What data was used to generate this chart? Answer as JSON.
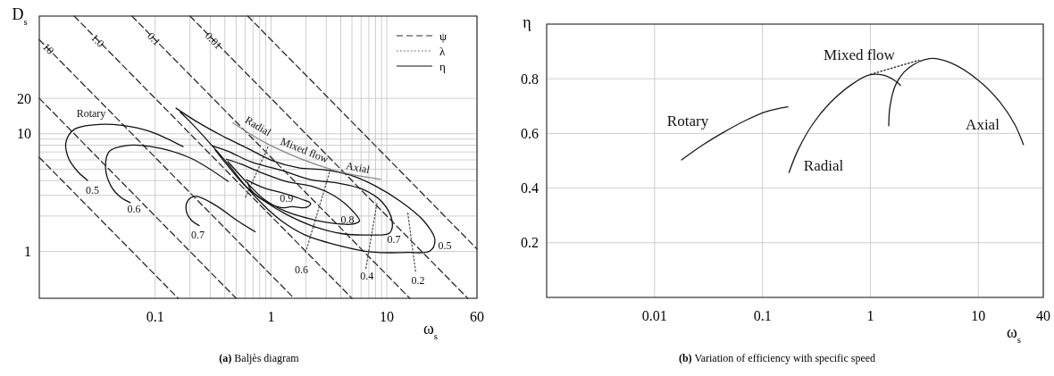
{
  "chart_data": [
    {
      "type": "line",
      "title": "(a) Baljès diagram",
      "xlabel": "ω$_{s}$",
      "ylabel": "D$_{s}$",
      "log": "xy",
      "xlim": [
        0.01,
        60
      ],
      "ylim": [
        0.4,
        100
      ],
      "xticks": [
        0.1,
        {
          "value": 0.2,
          "label": null
        },
        {
          "value": 0.3,
          "label": null
        },
        {
          "value": 0.4,
          "label": null
        },
        {
          "value": 0.5,
          "label": null
        },
        {
          "value": 0.6,
          "label": null
        },
        {
          "value": 0.7,
          "label": null
        },
        {
          "value": 0.8,
          "label": null
        },
        {
          "value": 0.9,
          "label": null
        },
        1,
        {
          "value": 2,
          "label": null
        },
        {
          "value": 3,
          "label": null
        },
        {
          "value": 4,
          "label": null
        },
        {
          "value": 5,
          "label": null
        },
        {
          "value": 6,
          "label": null
        },
        {
          "value": 7,
          "label": null
        },
        {
          "value": 8,
          "label": null
        },
        {
          "value": 9,
          "label": null
        },
        10,
        60
      ],
      "yticks": [
        1,
        {
          "value": 2,
          "label": null
        },
        {
          "value": 3,
          "label": null
        },
        {
          "value": 4,
          "label": null
        },
        {
          "value": 5,
          "label": null
        },
        {
          "value": 6,
          "label": null
        },
        {
          "value": 7,
          "label": null
        },
        {
          "value": 8,
          "label": null
        },
        {
          "value": 9,
          "label": null
        },
        10,
        20
      ],
      "grid": true,
      "legend": "top right",
      "series": [
        {
          "name": "ψ",
          "color": "#2b2b2b",
          "line_style": "dashed",
          "x": [
            0.01,
            0.158
          ],
          "values": [
            6.3,
            0.4
          ]
        },
        {
          "color": "#2b2b2b",
          "line_style": "dashed",
          "x": [
            0.01,
            0.5
          ],
          "values": [
            20,
            0.4
          ]
        },
        {
          "color": "#2b2b2b",
          "line_style": "dashed",
          "x": [
            0.01,
            1.58
          ],
          "values": [
            63,
            0.4
          ]
        },
        {
          "color": "#2b2b2b",
          "line_style": "dashed",
          "x": [
            0.02,
            5
          ],
          "values": [
            100,
            0.4
          ]
        },
        {
          "color": "#2b2b2b",
          "line_style": "dashed",
          "x": [
            0.063,
            15.8
          ],
          "values": [
            100,
            0.4
          ]
        },
        {
          "color": "#2b2b2b",
          "line_style": "dashed",
          "x": [
            0.2,
            50
          ],
          "values": [
            100,
            0.4
          ]
        },
        {
          "color": "#2b2b2b",
          "line_style": "dashed",
          "x": [
            0.63,
            60
          ],
          "values": [
            100,
            1.05
          ]
        },
        {
          "name": "λ",
          "color": "#555555",
          "line_style": "dotted",
          "x": [
            1.99,
            3.27
          ],
          "values": [
            0.98,
            5.05
          ]
        },
        {
          "color": "#555555",
          "line_style": "dotted",
          "x": [
            0.604,
            0.944
          ],
          "values": [
            2.89,
            7.78
          ]
        },
        {
          "color": "#555555",
          "line_style": "dotted",
          "x": [
            6.6,
            8.25
          ],
          "values": [
            0.72,
            2.64
          ]
        },
        {
          "color": "#555555",
          "line_style": "dotted",
          "x": [
            17.7,
            15.1
          ],
          "values": [
            0.68,
            2.19
          ]
        },
        {
          "name": "η",
          "color": "#111111",
          "line_style": "solid",
          "x": [
            0.174,
            0.0922,
            0.0519,
            0.0292,
            0.02,
            0.017,
            0.0178,
            0.021,
            0.0261
          ],
          "values": [
            7.78,
            10.4,
            11.8,
            11.9,
            10.9,
            8.53,
            6.27,
            4.89,
            4.01
          ]
        },
        {
          "color": "#111111",
          "line_style": "solid",
          "x": [
            0.426,
            0.198,
            0.0922,
            0.0554,
            0.0403,
            0.0373,
            0.0416,
            0.0503,
            0.0609
          ],
          "values": [
            3.94,
            6.27,
            7.78,
            7.93,
            7.1,
            5.2,
            3.59,
            2.89,
            2.6
          ]
        },
        {
          "color": "#111111",
          "line_style": "solid",
          "x": [
            0.731,
            0.515,
            0.33,
            0.225,
            0.192,
            0.186,
            0.208,
            0.24
          ],
          "values": [
            1.47,
            1.82,
            2.48,
            2.94,
            2.72,
            2.19,
            1.82,
            1.66
          ]
        },
        {
          "color": "#111111",
          "line_style": "solid",
          "x": [
            0.1515,
            0.225,
            0.375,
            0.624,
            1.04,
            1.73,
            2.88,
            4.8,
            8.0,
            13.3,
            20.8,
            26.0,
            23.6,
            15.1,
            7.36,
            4.04,
            1.97,
            1.23,
            0.859,
            0.604,
            0.426,
            0.29,
            0.198,
            0.165
          ],
          "values": [
            16.5,
            12.8,
            9.66,
            7.55,
            5.89,
            5.14,
            4.95,
            4.46,
            3.59,
            2.64,
            1.82,
            1.26,
            1.01,
            0.98,
            0.99,
            1.11,
            1.38,
            1.82,
            2.48,
            3.59,
            5.53,
            8.53,
            12.8,
            15.2
          ]
        },
        {
          "color": "#111111",
          "line_style": "solid",
          "x": [
            0.313,
            0.426,
            0.678,
            1.23,
            2.23,
            3.72,
            6.19,
            9.07,
            11.1,
            10.6,
            7.03,
            4.04,
            2.23,
            1.34,
            0.859,
            0.585,
            0.412,
            0.33
          ],
          "values": [
            7.88,
            7.1,
            5.75,
            4.89,
            4.06,
            3.82,
            3.38,
            2.64,
            1.82,
            1.44,
            1.38,
            1.42,
            1.66,
            2.08,
            2.72,
            3.7,
            5.53,
            7.3
          ]
        },
        {
          "color": "#111111",
          "line_style": "solid",
          "x": [
            0.412,
            0.549,
            0.859,
            1.34,
            2.23,
            3.49,
            5.11,
            5.81,
            5.11,
            3.49,
            2.23,
            1.34,
            0.859,
            0.624,
            0.469,
            0.425
          ],
          "values": [
            6.08,
            5.53,
            4.6,
            3.94,
            3.59,
            2.98,
            2.19,
            1.82,
            1.71,
            1.73,
            1.88,
            2.19,
            2.81,
            3.82,
            5.2,
            5.8
          ]
        },
        {
          "color": "#111111",
          "line_style": "solid",
          "x": [
            0.616,
            0.859,
            1.34,
            1.85,
            2.2,
            2.03,
            1.52,
            1.22,
            0.859,
            0.665,
            0.63
          ],
          "values": [
            4.06,
            3.48,
            3.08,
            2.77,
            2.56,
            2.37,
            2.4,
            2.36,
            2.72,
            3.38,
            3.85
          ]
        },
        {
          "color": "#888888",
          "line_style": "solid",
          "x": [
            0.469,
            0.975,
            3.38,
            8.79
          ],
          "values": [
            12.4,
            8.02,
            4.95,
            4.11
          ]
        }
      ],
      "annotations": [
        {
          "text": "10",
          "x": 0.012,
          "y": 53
        },
        {
          "text": "1.0",
          "x": 0.032,
          "y": 62
        },
        {
          "text": "0.1",
          "x": 0.098,
          "y": 64
        },
        {
          "text": "0.01",
          "x": 0.32,
          "y": 62
        },
        "Rotary",
        "0.5",
        "0.6",
        "0.7",
        "0.9",
        "0.8",
        "0.7",
        "0.5",
        "0.6",
        "0.4",
        "0.2",
        "Radial",
        "Mixed flow",
        "Axial"
      ]
    },
    {
      "type": "line",
      "title": "(b) Variation of efficiency with specific speed",
      "xlabel": "ω$_{s}$",
      "ylabel": "η",
      "log": "x",
      "xlim": [
        0.001,
        40
      ],
      "ylim": [
        0,
        1
      ],
      "xticks": [
        0.01,
        0.1,
        1,
        10,
        40
      ],
      "yticks": [
        0.2,
        0.4,
        0.6,
        0.8
      ],
      "grid": true,
      "series": [
        {
          "color": "#1a1a1a",
          "line_style": "solid",
          "x": [
            0.0178,
            0.028,
            0.044,
            0.0693,
            0.109,
            0.172
          ],
          "values": [
            0.503,
            0.558,
            0.605,
            0.647,
            0.68,
            0.697
          ]
        },
        {
          "color": "#1b1b1b",
          "line_style": "solid",
          "x": [
            0.176,
            0.215,
            0.292,
            0.426,
            0.67,
            0.977,
            1.32,
            1.66,
            1.9
          ],
          "values": [
            0.457,
            0.542,
            0.634,
            0.713,
            0.779,
            0.814,
            0.813,
            0.795,
            0.776
          ]
        },
        {
          "color": "#1c1c1c",
          "line_style": "solid",
          "x": [
            1.48,
            1.52,
            1.72,
            2.24,
            3.53,
            5.56,
            10.2,
            16.0,
            21.7,
            26.2
          ],
          "values": [
            0.628,
            0.7,
            0.779,
            0.838,
            0.874,
            0.858,
            0.792,
            0.713,
            0.634,
            0.559
          ]
        },
        {
          "color": "#1d1d1d",
          "line_style": "dotted",
          "x": [
            1.0,
            2.82
          ],
          "values": [
            0.816,
            0.868
          ]
        }
      ],
      "annotations": [
        "Mixed flow",
        "Rotary",
        "Radial",
        "Axial"
      ]
    }
  ]
}
